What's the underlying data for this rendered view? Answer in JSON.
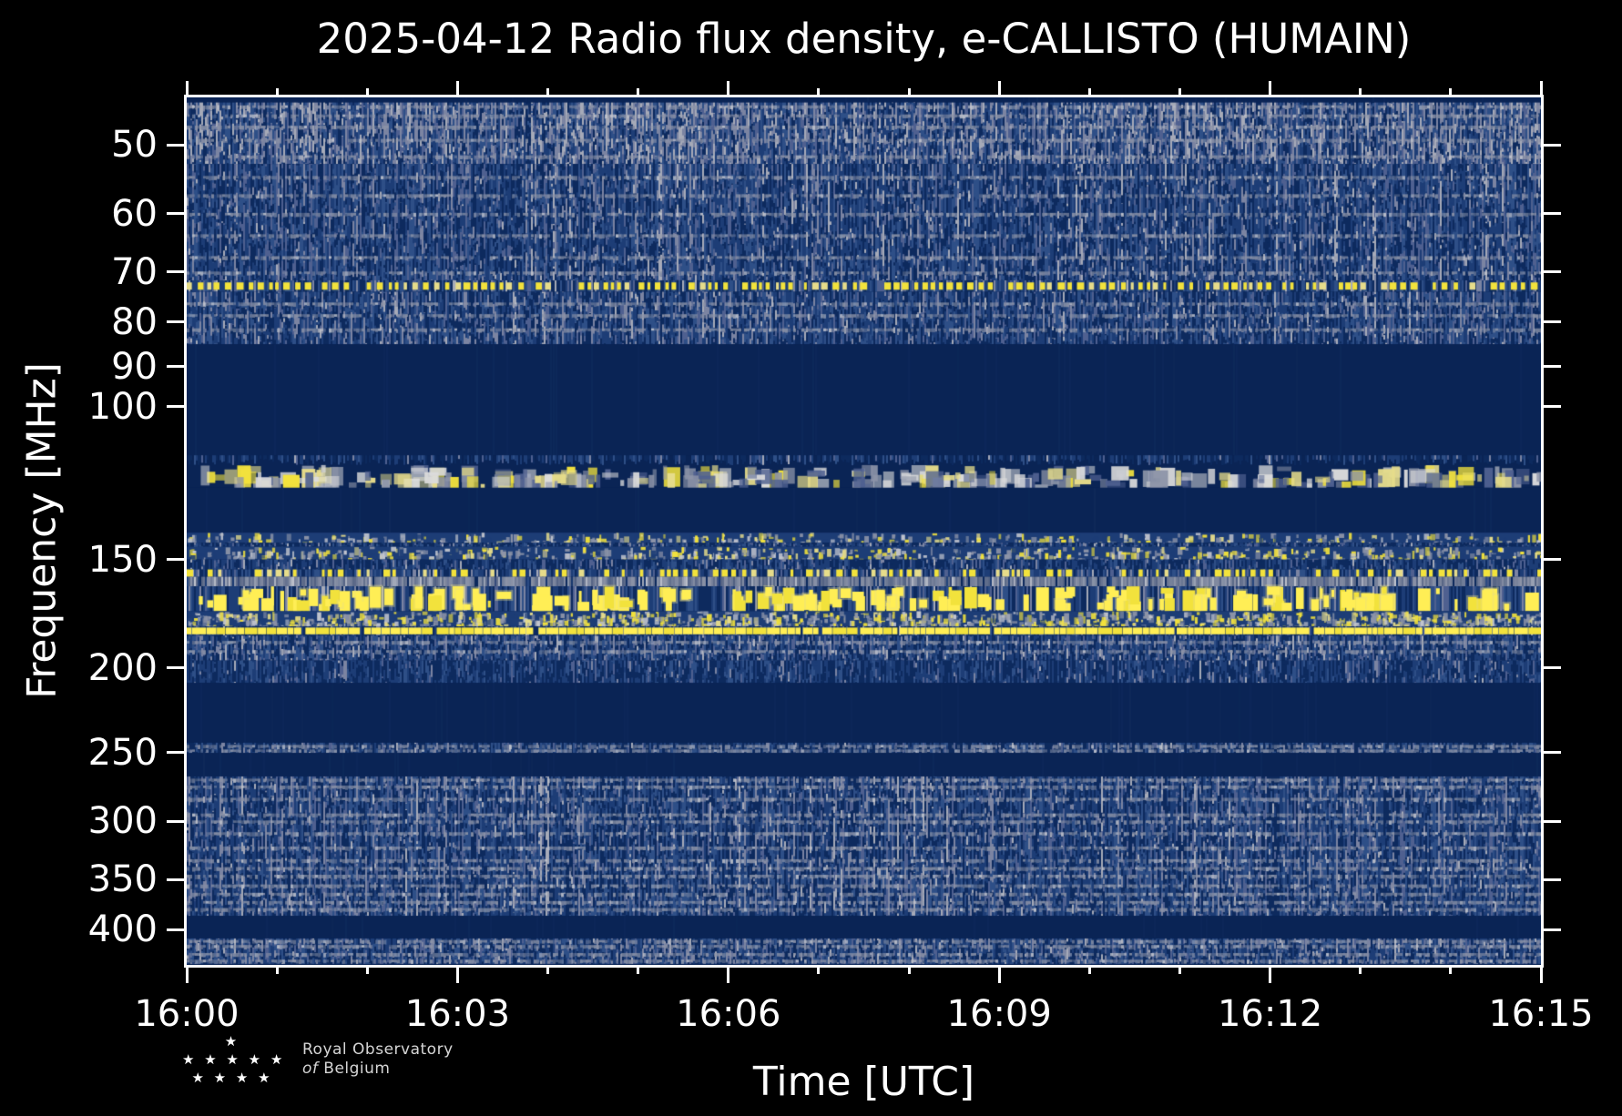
{
  "chart_data": {
    "type": "heatmap",
    "subtype": "radio-spectrogram",
    "title": "2025-04-12 Radio flux density, e-CALLISTO (HUMAIN)",
    "xlabel": "Time [UTC]",
    "ylabel": "Frequency [MHz]",
    "x_ticks": [
      "16:00",
      "16:03",
      "16:06",
      "16:09",
      "16:12",
      "16:15"
    ],
    "x_minor_interval_minutes": 1,
    "x_major_interval_minutes": 3,
    "x_span_minutes": 15,
    "y_ticks": [
      50,
      60,
      70,
      80,
      90,
      100,
      150,
      200,
      250,
      300,
      350,
      400
    ],
    "y_scale": "log",
    "y_inverted": true,
    "y_range_mhz": [
      44.1,
      439.0
    ],
    "grid": false,
    "legend": "none",
    "palette": {
      "background": "#000000",
      "axis": "#ffffff",
      "quiet": "#0a2455",
      "quiet_dark": "#091e49",
      "noise": [
        "#0d2a5e",
        "#1d3d76",
        "#2e4f87",
        "#4f6090",
        "#7b84a2",
        "#a6aab8"
      ],
      "weights": {
        "high-gray": [
          0.16,
          0.2,
          0.2,
          0.16,
          0.17,
          0.11
        ],
        "medium": [
          0.3,
          0.28,
          0.2,
          0.12,
          0.07,
          0.03
        ],
        "low": [
          0.44,
          0.3,
          0.15,
          0.07,
          0.03,
          0.01
        ]
      },
      "gray": "#8d94a8",
      "lightgray": "#c2c5ce",
      "yellow": "#f2e23c",
      "bright_yellow": "#ffee55",
      "pale_yellow": "#e6dc8a",
      "white": "#dcdcdc",
      "speckle_colors": [
        "#8d94a8",
        "#c2c5ce",
        "#f2e23c",
        "#e6dc8a",
        "#1d3d76"
      ],
      "speckle_weights": [
        0.33,
        0.14,
        0.22,
        0.11,
        0.2
      ]
    },
    "bands": [
      {
        "f_min_mhz": 44.1,
        "f_max_mhz": 44.7,
        "kind": "quiet",
        "label": "top edge strip"
      },
      {
        "f_min_mhz": 44.7,
        "f_max_mhz": 52.6,
        "kind": "noise",
        "intensity": "high-gray",
        "gray_rows": [
          45.2,
          46.3,
          47.7,
          49.4,
          51.6
        ],
        "label": "low-VHF broadband noise"
      },
      {
        "f_min_mhz": 52.6,
        "f_max_mhz": 71.6,
        "kind": "noise",
        "intensity": "medium",
        "gray_rows": [
          54.5,
          57.2,
          60.1,
          63.6,
          67.4,
          70.2
        ],
        "label": "VHF noise"
      },
      {
        "f_min_mhz": 71.6,
        "f_max_mhz": 73.8,
        "kind": "carrier-dashed",
        "coverage": 0.9,
        "label": "dashed RFI carrier ~73 MHz"
      },
      {
        "f_min_mhz": 73.8,
        "f_max_mhz": 84.8,
        "kind": "noise",
        "intensity": "medium",
        "gray_rows": [
          76.2,
          78.6,
          81.6
        ],
        "label": "VHF noise"
      },
      {
        "f_min_mhz": 84.8,
        "f_max_mhz": 113.8,
        "kind": "quiet",
        "label": "FM broadcast band (quiet/blanked)"
      },
      {
        "f_min_mhz": 113.8,
        "f_max_mhz": 124.0,
        "kind": "airband",
        "blob_count": 300,
        "label": "aeronautical band, sporadic transmissions"
      },
      {
        "f_min_mhz": 124.0,
        "f_max_mhz": 139.7,
        "kind": "quiet",
        "label": "quiet"
      },
      {
        "f_min_mhz": 139.7,
        "f_max_mhz": 143.5,
        "kind": "speckle",
        "density": 0.45,
        "label": "RFI speckle ~141 MHz"
      },
      {
        "f_min_mhz": 143.5,
        "f_max_mhz": 145.0,
        "kind": "noise",
        "intensity": "low",
        "label": "noise"
      },
      {
        "f_min_mhz": 145.0,
        "f_max_mhz": 150.0,
        "kind": "speckle",
        "density": 0.55,
        "label": "RFI speckle ~147 MHz"
      },
      {
        "f_min_mhz": 150.0,
        "f_max_mhz": 154.0,
        "kind": "noise",
        "intensity": "low",
        "label": "noise"
      },
      {
        "f_min_mhz": 154.0,
        "f_max_mhz": 157.0,
        "kind": "carrier-dashed",
        "coverage": 0.55,
        "label": "intermittent carrier ~155 MHz"
      },
      {
        "f_min_mhz": 157.0,
        "f_max_mhz": 161.0,
        "kind": "grayband",
        "label": "elevated broadband level ~159 MHz"
      },
      {
        "f_min_mhz": 161.0,
        "f_max_mhz": 172.0,
        "kind": "blobs",
        "blob_count": 190,
        "label": "strong bursty RFI 161-172 MHz"
      },
      {
        "f_min_mhz": 172.0,
        "f_max_mhz": 179.0,
        "kind": "speckle",
        "density": 0.9,
        "label": "dense gray/yellow RFI speckle ~175 MHz"
      },
      {
        "f_min_mhz": 179.0,
        "f_max_mhz": 183.5,
        "kind": "carrier-line",
        "label": "continuous strong carrier ~181 MHz"
      },
      {
        "f_min_mhz": 183.5,
        "f_max_mhz": 196.0,
        "kind": "noise",
        "intensity": "medium",
        "gray_rows": [
          186.8,
          191.4
        ],
        "label": "noise"
      },
      {
        "f_min_mhz": 196.0,
        "f_max_mhz": 208.0,
        "kind": "noise",
        "intensity": "low",
        "label": "noise"
      },
      {
        "f_min_mhz": 208.0,
        "f_max_mhz": 243.7,
        "kind": "quiet",
        "label": "quiet"
      },
      {
        "f_min_mhz": 243.7,
        "f_max_mhz": 250.3,
        "kind": "noise",
        "intensity": "low",
        "gray_rows": [
          246.0,
          249.0
        ],
        "label": "narrow noise band ~247 MHz"
      },
      {
        "f_min_mhz": 250.3,
        "f_max_mhz": 266.5,
        "kind": "quiet",
        "label": "quiet"
      },
      {
        "f_min_mhz": 266.5,
        "f_max_mhz": 385.5,
        "kind": "noise",
        "intensity": "medium",
        "gray_rows": [
          269,
          274,
          283,
          295,
          300.5,
          310,
          322,
          333,
          340,
          347,
          356,
          364,
          372,
          379
        ],
        "label": "UHF noise with narrow RFI rows"
      },
      {
        "f_min_mhz": 385.5,
        "f_max_mhz": 409.3,
        "kind": "quiet",
        "label": "quiet"
      },
      {
        "f_min_mhz": 409.3,
        "f_max_mhz": 437.9,
        "kind": "noise",
        "intensity": "medium",
        "gray_rows": [
          412.5,
          418,
          427,
          434.5
        ],
        "label": "70 cm band noise"
      },
      {
        "f_min_mhz": 437.9,
        "f_max_mhz": 439.0,
        "kind": "quiet",
        "label": "bottom edge strip"
      }
    ]
  },
  "footer": {
    "logo_line1": "Royal Observatory",
    "logo_line2_italic": "of",
    "logo_line2": "Belgium",
    "star_glyph": "★",
    "star_rows": [
      1,
      5,
      4
    ]
  }
}
